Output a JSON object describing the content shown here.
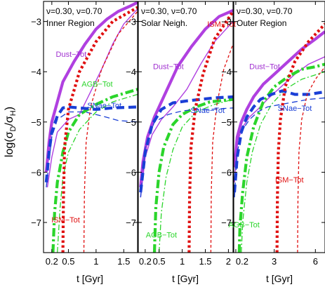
{
  "chart_data": [
    {
      "type": "line",
      "panel_title": "Inner Region",
      "params_label": "ν=0.30, ν=0.70",
      "xlabel": "t [Gyr]",
      "ylabel": "log(σD/σH)",
      "xlim": [
        0.05,
        1.75
      ],
      "ylim": [
        -7.6,
        -2.6
      ],
      "x_ticks": [
        0.2,
        0.5,
        1,
        1.5
      ],
      "x_tick_labels": [
        "0.2",
        "0.5",
        "1",
        "1.5"
      ],
      "y_ticks": [
        -7,
        -6,
        -5,
        -4,
        -3
      ],
      "y_tick_labels": [
        "−7",
        "−6",
        "−5",
        "−4",
        "−3"
      ],
      "annotations": [
        {
          "text": "Dust−Tot",
          "x": 0.55,
          "y": -3.7,
          "color": "#a030d0"
        },
        {
          "text": "AGB−Tot",
          "x": 1.02,
          "y": -4.3,
          "color": "#2bd52b"
        },
        {
          "text": "SNae−Tot",
          "x": 1.15,
          "y": -4.72,
          "color": "#1a3fd6"
        },
        {
          "text": "ISM−Tot",
          "x": 0.45,
          "y": -7.0,
          "color": "#e01010"
        }
      ],
      "series": [
        {
          "legend_label": "Dust−Tot",
          "role": "dust_total_thick",
          "color": "#b040e0",
          "x": [
            0.1,
            0.15,
            0.2,
            0.3,
            0.4,
            0.6,
            0.8,
            1.0,
            1.2,
            1.4,
            1.6,
            1.75
          ],
          "y": [
            -6.0,
            -5.4,
            -5.0,
            -4.6,
            -4.2,
            -3.8,
            -3.45,
            -3.15,
            -2.95,
            -2.8,
            -2.7,
            -2.62
          ]
        },
        {
          "legend_label": "Dust−Tot",
          "role": "dust_total_thin",
          "color": "#b040e0",
          "x": [
            0.12,
            0.2,
            0.3,
            0.5,
            0.7,
            0.9,
            1.1,
            1.3,
            1.5,
            1.75
          ],
          "y": [
            -6.3,
            -5.7,
            -5.2,
            -4.95,
            -4.85,
            -4.4,
            -3.95,
            -3.45,
            -3.05,
            -2.75
          ]
        },
        {
          "legend_label": "AGB−Tot",
          "role": "agb_total_thick",
          "color": "#2bd52b",
          "x": [
            0.22,
            0.25,
            0.3,
            0.4,
            0.5,
            0.7,
            1.0,
            1.3,
            1.75
          ],
          "y": [
            -7.6,
            -6.8,
            -6.2,
            -5.6,
            -5.2,
            -4.85,
            -4.65,
            -4.5,
            -4.35
          ]
        },
        {
          "legend_label": "AGB−Tot",
          "role": "agb_total_thin",
          "color": "#2bd52b",
          "x": [
            0.3,
            0.35,
            0.4,
            0.5,
            0.7,
            1.0,
            1.3,
            1.75
          ],
          "y": [
            -7.6,
            -6.7,
            -6.1,
            -5.6,
            -5.15,
            -4.8,
            -4.6,
            -4.45
          ]
        },
        {
          "legend_label": "SNae−Tot",
          "role": "snae_total_thick",
          "color": "#1a3fd6",
          "x": [
            0.1,
            0.15,
            0.2,
            0.3,
            0.4,
            0.5,
            0.7,
            1.0,
            1.3,
            1.75
          ],
          "y": [
            -6.2,
            -5.6,
            -5.2,
            -4.88,
            -4.72,
            -4.7,
            -4.72,
            -4.75,
            -4.72,
            -4.7
          ]
        },
        {
          "legend_label": "SNae−Tot",
          "role": "snae_total_thin",
          "color": "#1a3fd6",
          "x": [
            0.1,
            0.2,
            0.3,
            0.5,
            0.8,
            1.1,
            1.4,
            1.75
          ],
          "y": [
            -6.3,
            -5.3,
            -4.95,
            -4.8,
            -4.8,
            -4.88,
            -4.97,
            -5.0
          ]
        },
        {
          "legend_label": "ISM−Tot",
          "role": "ism_total_thick",
          "color": "#e01010",
          "x": [
            0.4,
            0.41,
            0.43,
            0.5,
            0.7,
            1.0,
            1.3,
            1.75
          ],
          "y": [
            -7.6,
            -6.5,
            -5.5,
            -4.75,
            -4.0,
            -3.4,
            -3.0,
            -2.72
          ]
        },
        {
          "legend_label": "ISM−Tot",
          "role": "ism_total_thin",
          "color": "#e01010",
          "x": [
            0.78,
            0.79,
            0.82,
            0.9,
            1.1,
            1.4,
            1.75
          ],
          "y": [
            -7.6,
            -6.4,
            -5.4,
            -4.7,
            -3.95,
            -3.25,
            -2.8
          ]
        }
      ]
    },
    {
      "type": "line",
      "panel_title": "Solar Neigh.",
      "params_label": "ν=0.30, ν=0.70",
      "xlabel": "t [Gyr]",
      "ylabel": "",
      "xlim": [
        0.05,
        2.1
      ],
      "ylim": [
        -7.6,
        -2.6
      ],
      "x_ticks": [
        0.2,
        0.5,
        1,
        1.5,
        2
      ],
      "x_tick_labels": [
        "0.2",
        "0.5",
        "1",
        "1.5",
        "2"
      ],
      "y_ticks": [
        -7,
        -6,
        -5,
        -4,
        -3
      ],
      "y_tick_labels": [
        "−7",
        "−6",
        "−5",
        "−4",
        "−3"
      ],
      "annotations": [
        {
          "text": "Dust−Tot",
          "x": 0.7,
          "y": -3.95,
          "color": "#a030d0"
        },
        {
          "text": "ISM−Tot",
          "x": 1.85,
          "y": -3.1,
          "color": "#e01010"
        },
        {
          "text": "SNae−Tot",
          "x": 1.55,
          "y": -4.82,
          "color": "#1a3fd6"
        },
        {
          "text": "AGB−Tot",
          "x": 0.55,
          "y": -7.3,
          "color": "#2bd52b"
        }
      ],
      "series": [
        {
          "legend_label": "Dust−Tot",
          "role": "dust_total_thick",
          "color": "#b040e0",
          "x": [
            0.1,
            0.15,
            0.25,
            0.4,
            0.6,
            0.9,
            1.2,
            1.5,
            1.8,
            2.1
          ],
          "y": [
            -6.3,
            -5.8,
            -5.3,
            -4.9,
            -4.5,
            -3.9,
            -3.5,
            -3.15,
            -2.9,
            -2.78
          ]
        },
        {
          "legend_label": "Dust−Tot",
          "role": "dust_total_thin",
          "color": "#b040e0",
          "x": [
            0.1,
            0.2,
            0.35,
            0.55,
            0.8,
            1.1,
            1.4,
            1.7,
            2.1
          ],
          "y": [
            -6.5,
            -5.7,
            -5.25,
            -4.95,
            -4.7,
            -4.35,
            -3.85,
            -3.4,
            -3.0
          ]
        },
        {
          "legend_label": "AGB−Tot",
          "role": "agb_total_thick",
          "color": "#2bd52b",
          "x": [
            0.4,
            0.43,
            0.5,
            0.6,
            0.8,
            1.0,
            1.3,
            1.6,
            2.1
          ],
          "y": [
            -7.6,
            -6.7,
            -6.0,
            -5.5,
            -5.05,
            -4.85,
            -4.7,
            -4.6,
            -4.55
          ]
        },
        {
          "legend_label": "AGB−Tot",
          "role": "agb_total_thin",
          "color": "#2bd52b",
          "x": [
            0.5,
            0.55,
            0.65,
            0.8,
            1.0,
            1.3,
            1.7,
            2.1
          ],
          "y": [
            -7.6,
            -6.8,
            -6.1,
            -5.55,
            -5.1,
            -4.8,
            -4.65,
            -4.55
          ]
        },
        {
          "legend_label": "SNae−Tot",
          "role": "snae_total_thick",
          "color": "#1a3fd6",
          "x": [
            0.1,
            0.2,
            0.35,
            0.55,
            0.8,
            1.1,
            1.4,
            1.7,
            2.1
          ],
          "y": [
            -6.4,
            -5.6,
            -5.05,
            -4.75,
            -4.62,
            -4.58,
            -4.55,
            -4.52,
            -4.5
          ]
        },
        {
          "legend_label": "SNae−Tot",
          "role": "snae_total_thin",
          "color": "#1a3fd6",
          "x": [
            0.1,
            0.2,
            0.4,
            0.7,
            1.0,
            1.3,
            1.6,
            2.1
          ],
          "y": [
            -6.5,
            -5.5,
            -5.0,
            -4.85,
            -4.78,
            -4.75,
            -4.75,
            -4.72
          ]
        },
        {
          "legend_label": "ISM−Tot",
          "role": "ism_total_thick",
          "color": "#e01010",
          "x": [
            1.15,
            1.16,
            1.19,
            1.28,
            1.45,
            1.7,
            2.1
          ],
          "y": [
            -7.6,
            -6.5,
            -5.5,
            -4.75,
            -4.05,
            -3.35,
            -2.8
          ]
        },
        {
          "legend_label": "ISM−Tot",
          "role": "ism_total_thin",
          "color": "#e01010",
          "x": [
            1.62,
            1.63,
            1.66,
            1.75,
            1.9,
            2.1
          ],
          "y": [
            -7.6,
            -6.4,
            -5.4,
            -4.65,
            -3.95,
            -3.45
          ]
        }
      ]
    },
    {
      "type": "line",
      "panel_title": "Outer Region",
      "params_label": "ν=0.30, ν=0.70",
      "xlabel": "t [Gyr]",
      "ylabel": "",
      "xlim": [
        0.05,
        6.7
      ],
      "ylim": [
        -7.6,
        -2.6
      ],
      "x_ticks": [
        0.2,
        3,
        6
      ],
      "x_tick_labels": [
        "0.2",
        "3",
        "6"
      ],
      "y_ticks": [
        -7,
        -6,
        -5,
        -4,
        -3
      ],
      "y_tick_labels": [
        "−7",
        "−6",
        "−5",
        "−4",
        "−3"
      ],
      "annotations": [
        {
          "text": "Dust−Tot",
          "x": 2.3,
          "y": -3.95,
          "color": "#a030d0"
        },
        {
          "text": "SNae−Tot",
          "x": 4.5,
          "y": -4.78,
          "color": "#1a3fd6"
        },
        {
          "text": "ISM−Tot",
          "x": 4.1,
          "y": -6.2,
          "color": "#e01010"
        },
        {
          "text": "AGB−Tot",
          "x": 0.8,
          "y": -7.1,
          "color": "#2bd52b"
        }
      ],
      "series": [
        {
          "legend_label": "Dust−Tot",
          "role": "dust_total_thick",
          "color": "#b040e0",
          "x": [
            0.1,
            0.3,
            0.6,
            1.0,
            1.5,
            2.2,
            3.0,
            4.0,
            5.0,
            6.0,
            6.7
          ],
          "y": [
            -5.9,
            -5.3,
            -5.0,
            -4.75,
            -4.5,
            -4.25,
            -4.05,
            -3.8,
            -3.55,
            -3.35,
            -3.2
          ]
        },
        {
          "legend_label": "Dust−Tot",
          "role": "dust_total_thin",
          "color": "#b040e0",
          "x": [
            0.1,
            0.3,
            0.7,
            1.2,
            1.8,
            2.5,
            3.5,
            4.5,
            5.5,
            6.7
          ],
          "y": [
            -6.2,
            -5.4,
            -5.1,
            -4.9,
            -4.75,
            -4.55,
            -4.3,
            -4.05,
            -3.85,
            -3.7
          ]
        },
        {
          "legend_label": "AGB−Tot",
          "role": "agb_total_thick",
          "color": "#2bd52b",
          "x": [
            0.45,
            0.5,
            0.7,
            1.0,
            1.5,
            2.2,
            3.0,
            4.0,
            5.0,
            6.0,
            6.7
          ],
          "y": [
            -7.6,
            -7.1,
            -6.4,
            -5.7,
            -5.1,
            -4.6,
            -4.3,
            -4.1,
            -3.95,
            -3.9,
            -3.85
          ]
        },
        {
          "legend_label": "AGB−Tot",
          "role": "agb_total_thin",
          "color": "#2bd52b",
          "x": [
            0.6,
            0.7,
            1.0,
            1.4,
            2.0,
            2.8,
            3.8,
            5.0,
            6.7
          ],
          "y": [
            -7.6,
            -7.0,
            -6.2,
            -5.6,
            -5.05,
            -4.65,
            -4.35,
            -4.15,
            -4.0
          ]
        },
        {
          "legend_label": "SNae−Tot",
          "role": "snae_total_thick",
          "color": "#1a3fd6",
          "x": [
            0.1,
            0.3,
            0.6,
            1.0,
            1.5,
            2.0,
            2.8,
            3.6,
            4.5,
            5.5,
            6.7
          ],
          "y": [
            -6.4,
            -5.7,
            -5.2,
            -4.9,
            -4.7,
            -4.55,
            -4.45,
            -4.38,
            -4.45,
            -4.45,
            -4.4
          ]
        },
        {
          "legend_label": "SNae−Tot",
          "role": "snae_total_thin",
          "color": "#1a3fd6",
          "x": [
            0.1,
            0.3,
            0.7,
            1.2,
            1.8,
            2.5,
            3.5,
            4.5,
            5.5,
            6.7
          ],
          "y": [
            -6.5,
            -5.6,
            -5.15,
            -4.95,
            -4.8,
            -4.7,
            -4.65,
            -4.6,
            -4.55,
            -4.52
          ]
        },
        {
          "legend_label": "ISM−Tot",
          "role": "ism_total_thick",
          "color": "#e01010",
          "x": [
            3.2,
            3.23,
            3.3,
            3.45,
            3.8,
            4.5,
            5.5,
            6.7
          ],
          "y": [
            -7.6,
            -6.5,
            -5.6,
            -4.95,
            -4.3,
            -3.8,
            -3.4,
            -3.05
          ]
        },
        {
          "legend_label": "ISM−Tot",
          "role": "ism_total_thin",
          "color": "#e01010",
          "x": [
            4.7,
            4.73,
            4.8,
            5.0,
            5.4,
            6.0,
            6.7
          ],
          "y": [
            -7.6,
            -6.5,
            -5.6,
            -4.95,
            -4.45,
            -4.15,
            -3.9
          ]
        }
      ]
    }
  ]
}
